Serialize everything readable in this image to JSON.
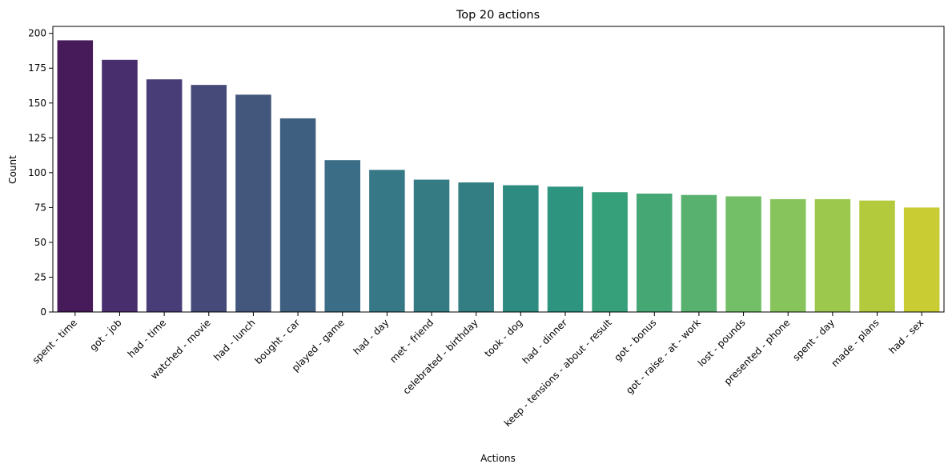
{
  "chart_data": {
    "type": "bar",
    "title": "Top 20 actions",
    "xlabel": "Actions",
    "ylabel": "Count",
    "ylim": [
      0,
      205
    ],
    "yticks": [
      0,
      25,
      50,
      75,
      100,
      125,
      150,
      175,
      200
    ],
    "grid": false,
    "legend": "none",
    "categories": [
      "spent - time",
      "got - job",
      "had - time",
      "watched - movie",
      "had - lunch",
      "bought - car",
      "played - game",
      "had - day",
      "met - friend",
      "celebrated - birthday",
      "took - dog",
      "had - dinner",
      "keep - tensions - about - result",
      "got - bonus",
      "got - raise - at - work",
      "lost - pounds",
      "presented - phone",
      "spent - day",
      "made - plans",
      "had - sex"
    ],
    "values": [
      195,
      181,
      167,
      163,
      156,
      139,
      109,
      102,
      95,
      93,
      91,
      90,
      86,
      85,
      84,
      83,
      81,
      81,
      80,
      75
    ],
    "colors": [
      "#471b59",
      "#482e6d",
      "#483d77",
      "#464a79",
      "#43567c",
      "#3f5f80",
      "#3b6e86",
      "#377887",
      "#347b84",
      "#327e82",
      "#2e8b81",
      "#2d9480",
      "#36a07b",
      "#45a774",
      "#58b16f",
      "#72bf67",
      "#88c45c",
      "#9bc84d",
      "#b3ca3c",
      "#c9cc32"
    ]
  }
}
